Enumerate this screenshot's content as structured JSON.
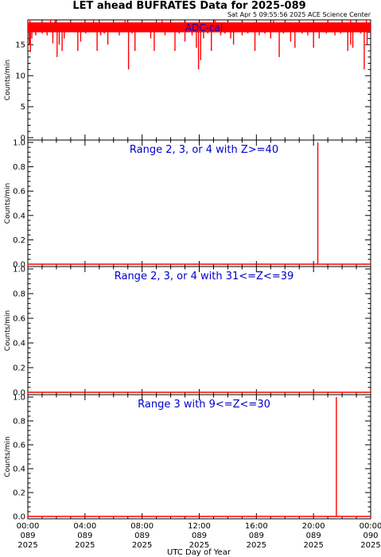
{
  "page": {
    "title": "LET ahead BUFRATES Data for 2025-089",
    "timestamp": "Sat Apr  5 09:55:56 2025 ACE Science Center",
    "xlabel": "UTC Day of Year"
  },
  "colors": {
    "data": "#ff0000",
    "panel_label": "#0000cc",
    "axis": "#000000"
  },
  "x_ticks": [
    {
      "time": "00:00",
      "doy": "089",
      "year": "2025",
      "hour": 0
    },
    {
      "time": "04:00",
      "doy": "089",
      "year": "2025",
      "hour": 4
    },
    {
      "time": "08:00",
      "doy": "089",
      "year": "2025",
      "hour": 8
    },
    {
      "time": "12:00",
      "doy": "089",
      "year": "2025",
      "hour": 12
    },
    {
      "time": "16:00",
      "doy": "089",
      "year": "2025",
      "hour": 16
    },
    {
      "time": "20:00",
      "doy": "089",
      "year": "2025",
      "hour": 20
    },
    {
      "time": "00:00",
      "doy": "090",
      "year": "2025",
      "hour": 24
    }
  ],
  "chart_data": [
    {
      "type": "line",
      "label": "ADC-cal",
      "ylabel": "Counts/min",
      "ylim": [
        0,
        19
      ],
      "yticks": [
        0,
        5,
        10,
        15
      ],
      "xlim_hours": [
        0,
        24
      ],
      "baseline": 18,
      "baseline_band": [
        17,
        18.6
      ],
      "spikes_up": [
        {
          "hour": 0.15,
          "value": 19
        },
        {
          "hour": 1.6,
          "value": 19
        },
        {
          "hour": 1.9,
          "value": 19
        },
        {
          "hour": 4.6,
          "value": 19
        },
        {
          "hour": 6.8,
          "value": 19
        },
        {
          "hour": 9.4,
          "value": 19
        },
        {
          "hour": 13.1,
          "value": 19
        },
        {
          "hour": 17.2,
          "value": 19
        },
        {
          "hour": 21.0,
          "value": 19
        },
        {
          "hour": 22.6,
          "value": 19
        },
        {
          "hour": 23.7,
          "value": 19
        }
      ],
      "dips": [
        {
          "hour": 0.1,
          "value": 15
        },
        {
          "hour": 0.18,
          "value": 13.8
        },
        {
          "hour": 0.28,
          "value": 16
        },
        {
          "hour": 0.4,
          "value": 17
        },
        {
          "hour": 0.55,
          "value": 16.5
        },
        {
          "hour": 1.0,
          "value": 16.8
        },
        {
          "hour": 1.35,
          "value": 16.5
        },
        {
          "hour": 1.75,
          "value": 15.2
        },
        {
          "hour": 2.05,
          "value": 13
        },
        {
          "hour": 2.2,
          "value": 15
        },
        {
          "hour": 2.4,
          "value": 14
        },
        {
          "hour": 2.55,
          "value": 16
        },
        {
          "hour": 3.5,
          "value": 14
        },
        {
          "hour": 3.7,
          "value": 15.5
        },
        {
          "hour": 4.05,
          "value": 16.8
        },
        {
          "hour": 4.85,
          "value": 14
        },
        {
          "hour": 5.1,
          "value": 16.5
        },
        {
          "hour": 5.35,
          "value": 16.8
        },
        {
          "hour": 5.6,
          "value": 15
        },
        {
          "hour": 6.4,
          "value": 16.5
        },
        {
          "hour": 7.05,
          "value": 11
        },
        {
          "hour": 7.3,
          "value": 16.8
        },
        {
          "hour": 7.5,
          "value": 14
        },
        {
          "hour": 8.6,
          "value": 16
        },
        {
          "hour": 8.85,
          "value": 14
        },
        {
          "hour": 9.6,
          "value": 16.5
        },
        {
          "hour": 10.3,
          "value": 14
        },
        {
          "hour": 10.6,
          "value": 16.8
        },
        {
          "hour": 11.0,
          "value": 15.5
        },
        {
          "hour": 11.5,
          "value": 16.5
        },
        {
          "hour": 11.8,
          "value": 14.5
        },
        {
          "hour": 11.95,
          "value": 11
        },
        {
          "hour": 12.1,
          "value": 12.5
        },
        {
          "hour": 12.3,
          "value": 16
        },
        {
          "hour": 12.6,
          "value": 16.8
        },
        {
          "hour": 12.85,
          "value": 14
        },
        {
          "hour": 13.5,
          "value": 16.5
        },
        {
          "hour": 13.8,
          "value": 16.8
        },
        {
          "hour": 14.2,
          "value": 16
        },
        {
          "hour": 14.4,
          "value": 15
        },
        {
          "hour": 15.0,
          "value": 16.5
        },
        {
          "hour": 15.4,
          "value": 16.8
        },
        {
          "hour": 15.9,
          "value": 14
        },
        {
          "hour": 16.2,
          "value": 16.5
        },
        {
          "hour": 16.6,
          "value": 16.8
        },
        {
          "hour": 17.0,
          "value": 16
        },
        {
          "hour": 17.6,
          "value": 13
        },
        {
          "hour": 17.9,
          "value": 16.8
        },
        {
          "hour": 18.4,
          "value": 15.5
        },
        {
          "hour": 18.7,
          "value": 14.5
        },
        {
          "hour": 19.2,
          "value": 16.8
        },
        {
          "hour": 19.6,
          "value": 16.5
        },
        {
          "hour": 20.0,
          "value": 14.5
        },
        {
          "hour": 20.4,
          "value": 16
        },
        {
          "hour": 20.9,
          "value": 16.8
        },
        {
          "hour": 21.5,
          "value": 16.5
        },
        {
          "hour": 21.9,
          "value": 16.8
        },
        {
          "hour": 22.4,
          "value": 14
        },
        {
          "hour": 22.6,
          "value": 15
        },
        {
          "hour": 22.75,
          "value": 14.5
        },
        {
          "hour": 23.3,
          "value": 16.8
        },
        {
          "hour": 23.55,
          "value": 11
        },
        {
          "hour": 23.75,
          "value": 15
        }
      ]
    },
    {
      "type": "line",
      "label": "Range 2, 3, or 4 with Z>=40",
      "ylabel": "Counts/min",
      "ylim": [
        0,
        1.0
      ],
      "yticks": [
        0.0,
        0.2,
        0.4,
        0.6,
        0.8,
        1.0
      ],
      "xlim_hours": [
        0,
        24
      ],
      "baseline": 0,
      "spikes_up": [
        {
          "hour": 20.3,
          "value": 1.0
        }
      ],
      "dips": []
    },
    {
      "type": "line",
      "label": "Range 2, 3, or 4 with 31<=Z<=39",
      "ylabel": "Counts/min",
      "ylim": [
        0,
        1.0
      ],
      "yticks": [
        0.0,
        0.2,
        0.4,
        0.6,
        0.8,
        1.0
      ],
      "xlim_hours": [
        0,
        24
      ],
      "baseline": 0,
      "spikes_up": [],
      "dips": []
    },
    {
      "type": "line",
      "label": "Range 3 with 9<=Z<=30",
      "ylabel": "Counts/min",
      "ylim": [
        0,
        1.0
      ],
      "yticks": [
        0.0,
        0.2,
        0.4,
        0.6,
        0.8,
        1.0
      ],
      "xlim_hours": [
        0,
        24
      ],
      "baseline": 0,
      "spikes_up": [
        {
          "hour": 21.6,
          "value": 1.0
        }
      ],
      "dips": []
    }
  ]
}
